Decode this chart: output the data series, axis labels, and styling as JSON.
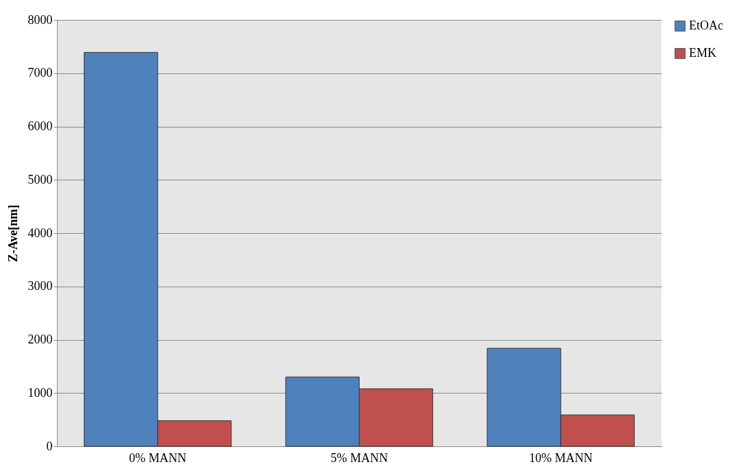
{
  "chart_data": {
    "type": "bar",
    "ylabel": "Z-Ave[nm]",
    "categories": [
      "0% MANN",
      "5% MANN",
      "10% MANN"
    ],
    "series": [
      {
        "name": "EtOAc",
        "color": "#4f81bd",
        "values": [
          7390,
          1300,
          1840
        ]
      },
      {
        "name": "EMK",
        "color": "#c0504d",
        "values": [
          480,
          1080,
          590
        ]
      }
    ],
    "ylim": [
      0,
      8000
    ],
    "yticks": [
      0,
      1000,
      2000,
      3000,
      4000,
      5000,
      6000,
      7000,
      8000
    ],
    "grid": "y",
    "legend": "right"
  }
}
